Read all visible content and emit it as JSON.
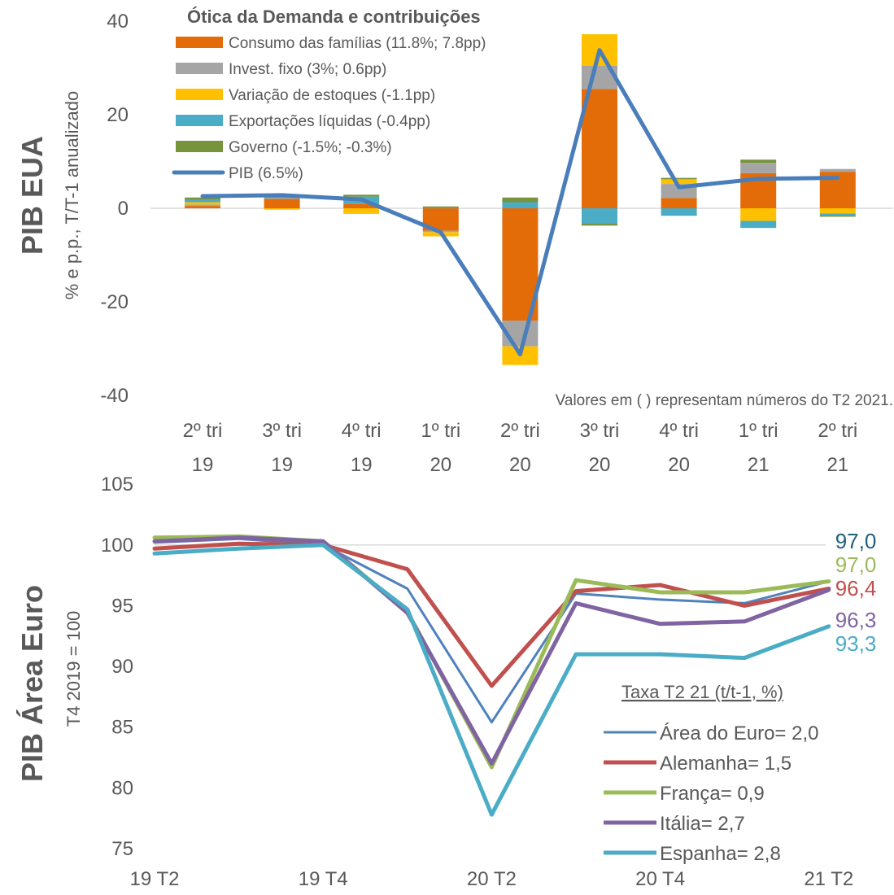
{
  "chart_data": [
    {
      "type": "bar",
      "subtype": "stacked-bar-with-line",
      "title": "Ótica da Demanda e contribuições",
      "side_title": "PIB EUA",
      "ylabel": "% e  p.p., T/T-1 anualizado",
      "note": "Valores em ( ) representam números do T2 2021.",
      "ylim": [
        -40,
        40
      ],
      "yticks": [
        "-40",
        "-20",
        "0",
        "20",
        "40"
      ],
      "gridline_at_zero": true,
      "categories": [
        [
          "2º tri",
          "19"
        ],
        [
          "3º tri",
          "19"
        ],
        [
          "4º tri",
          "19"
        ],
        [
          "1º tri",
          "20"
        ],
        [
          "2º tri",
          "20"
        ],
        [
          "3º tri",
          "20"
        ],
        [
          "4º tri",
          "20"
        ],
        [
          "1º tri",
          "21"
        ],
        [
          "2º tri",
          "21"
        ]
      ],
      "legend_position": "top-left",
      "series": [
        {
          "name": "Consumo das famílias (11.8%; 7.8pp)",
          "color": "#E36C09",
          "values": [
            0.5,
            2.0,
            1.0,
            -4.8,
            -24.0,
            25.5,
            2.2,
            7.5,
            7.8
          ]
        },
        {
          "name": "Invest. fixo (3%; 0.6pp)",
          "color": "#A5A5A5",
          "values": [
            0.3,
            0.2,
            0.0,
            -0.3,
            -5.5,
            5.0,
            3.0,
            2.2,
            0.6
          ]
        },
        {
          "name": "Variação de estoques (-1.1pp)",
          "color": "#FFC000",
          "values": [
            0.5,
            -0.3,
            -1.2,
            -0.9,
            -4.0,
            6.7,
            1.0,
            -2.7,
            -1.1
          ]
        },
        {
          "name": "Exportações líquidas (-0.4pp)",
          "color": "#4BACC6",
          "values": [
            0.5,
            0.3,
            1.5,
            0.1,
            1.3,
            -3.2,
            -1.6,
            -1.5,
            -0.4
          ]
        },
        {
          "name": "Governo (-1.5%; -0.3%)",
          "color": "#77933C",
          "values": [
            0.5,
            0.3,
            0.4,
            0.3,
            1.0,
            -0.5,
            0.3,
            0.7,
            -0.3
          ]
        },
        {
          "name": "PIB (6.5%)",
          "color": "#4A7EBB",
          "kind": "line",
          "values": [
            2.6,
            2.8,
            1.9,
            -5.1,
            -31.2,
            33.8,
            4.5,
            6.3,
            6.5
          ]
        }
      ]
    },
    {
      "type": "line",
      "side_title": "PIB Área Euro",
      "ylabel": "T4 2019 = 100",
      "ylim": [
        75,
        105
      ],
      "yticks": [
        "75",
        "80",
        "85",
        "90",
        "95",
        "100",
        "105"
      ],
      "gridline_at": 100,
      "x": [
        "19 T2",
        "19 T3",
        "19 T4",
        "20 T1",
        "20 T2",
        "20 T3",
        "20 T4",
        "21 T1",
        "21 T2"
      ],
      "xtick_labels": [
        "19 T2",
        "19 T4",
        "20 T2",
        "20 T4",
        "21 T2"
      ],
      "legend_title": "Taxa T2 21 (t/t-1, %)",
      "legend_position": "bottom-right",
      "end_labels": [
        {
          "text": "97,0",
          "color": "#1F5F7A"
        },
        {
          "text": "97,0",
          "color": "#9BBB59"
        },
        {
          "text": "96,4",
          "color": "#C0504D"
        },
        {
          "text": "96,3",
          "color": "#8064A2"
        },
        {
          "text": "93,3",
          "color": "#4BACC6"
        }
      ],
      "series": [
        {
          "name": "Área do Euro= 2,0",
          "color": "#4F81BD",
          "width": 3,
          "values": [
            100.2,
            100.5,
            100.0,
            96.4,
            85.4,
            96.0,
            95.5,
            95.2,
            97.0
          ]
        },
        {
          "name": "Alemanha= 1,5",
          "color": "#C0504D",
          "width": 5,
          "values": [
            99.7,
            100.1,
            100.0,
            98.0,
            88.4,
            96.2,
            96.7,
            95.0,
            96.4
          ]
        },
        {
          "name": "França= 0,9",
          "color": "#9BBB59",
          "width": 5,
          "values": [
            100.6,
            100.7,
            100.3,
            94.5,
            81.7,
            97.1,
            96.1,
            96.1,
            97.0
          ]
        },
        {
          "name": "Itália= 2,7",
          "color": "#8064A2",
          "width": 5,
          "values": [
            100.3,
            100.6,
            100.3,
            94.4,
            82.0,
            95.2,
            93.5,
            93.7,
            96.3
          ]
        },
        {
          "name": "Espanha= 2,8",
          "color": "#4BACC6",
          "width": 5,
          "values": [
            99.3,
            99.7,
            100.0,
            94.7,
            77.8,
            91.0,
            91.0,
            90.7,
            93.3
          ]
        }
      ]
    }
  ]
}
